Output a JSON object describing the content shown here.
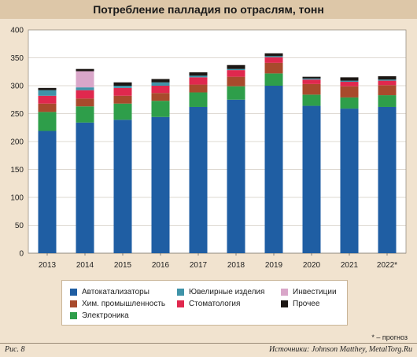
{
  "title": "Потребление палладия по отраслям, тонн",
  "figure_label": "Рис. 8",
  "source": "Источники: Johnson Matthey, MetalTorg.Ru",
  "footnote": "* – прогноз",
  "chart_data": {
    "type": "bar",
    "stacked": true,
    "title": "Потребление палладия по отраслям, тонн",
    "categories": [
      "2013",
      "2014",
      "2015",
      "2016",
      "2017",
      "2018",
      "2019",
      "2020",
      "2021",
      "2022*"
    ],
    "ylim": [
      0,
      400
    ],
    "yticks": [
      "0",
      "50",
      "100",
      "150",
      "200",
      "250",
      "300",
      "350",
      "400"
    ],
    "grid": true,
    "legend_position": "bottom",
    "series": [
      {
        "name": "Автокатализаторы",
        "color": "#1f5ea3",
        "values": [
          219,
          234,
          239,
          244,
          262,
          275,
          300,
          264,
          259,
          262
        ]
      },
      {
        "name": "Электроника",
        "color": "#2e9e4a",
        "values": [
          34,
          29,
          29,
          29,
          26,
          24,
          22,
          20,
          20,
          21
        ]
      },
      {
        "name": "Хим. промышленность",
        "color": "#a84a2c",
        "values": [
          15,
          14,
          14,
          14,
          14,
          17,
          19,
          19,
          20,
          18
        ]
      },
      {
        "name": "Стоматология",
        "color": "#e0284e",
        "values": [
          14,
          15,
          14,
          13,
          13,
          12,
          10,
          8,
          8,
          8
        ]
      },
      {
        "name": "Ювелирные изделия",
        "color": "#3f93a8",
        "values": [
          10,
          5,
          4,
          6,
          3,
          2,
          2,
          2,
          2,
          2
        ]
      },
      {
        "name": "Инвестиции",
        "color": "#d9a6c9",
        "values": [
          0,
          29,
          0,
          0,
          0,
          0,
          0,
          0,
          0,
          0
        ]
      },
      {
        "name": "Прочее",
        "color": "#1c1714",
        "values": [
          4,
          4,
          6,
          6,
          6,
          7,
          5,
          3,
          6,
          6
        ]
      }
    ]
  },
  "legend": [
    {
      "label": "Автокатализаторы",
      "color": "#1f5ea3"
    },
    {
      "label": "Ювелирные изделия",
      "color": "#3f93a8"
    },
    {
      "label": "Инвестиции",
      "color": "#d9a6c9"
    },
    {
      "label": "Хим. промышленность",
      "color": "#a84a2c"
    },
    {
      "label": "Стоматология",
      "color": "#e0284e"
    },
    {
      "label": "Прочее",
      "color": "#1c1714"
    },
    {
      "label": "Электроника",
      "color": "#2e9e4a"
    }
  ]
}
